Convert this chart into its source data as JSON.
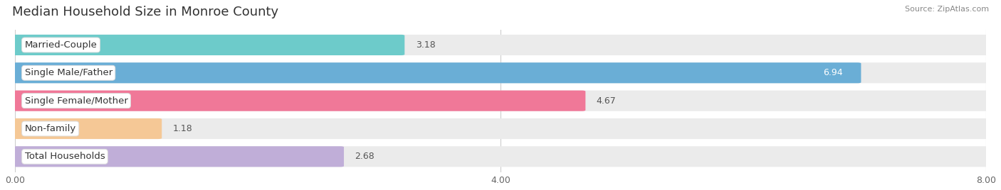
{
  "title": "Median Household Size in Monroe County",
  "source": "Source: ZipAtlas.com",
  "categories": [
    "Married-Couple",
    "Single Male/Father",
    "Single Female/Mother",
    "Non-family",
    "Total Households"
  ],
  "values": [
    3.18,
    6.94,
    4.67,
    1.18,
    2.68
  ],
  "bar_colors": [
    "#6dcbca",
    "#6aaed6",
    "#f07898",
    "#f5c896",
    "#c0aed8"
  ],
  "xlim": [
    0,
    8.0
  ],
  "xticks": [
    0.0,
    4.0,
    8.0
  ],
  "xtick_labels": [
    "0.00",
    "4.00",
    "8.00"
  ],
  "background_color": "#ffffff",
  "bar_bg_color": "#ebebeb",
  "title_fontsize": 13,
  "label_fontsize": 9.5,
  "value_fontsize": 9
}
